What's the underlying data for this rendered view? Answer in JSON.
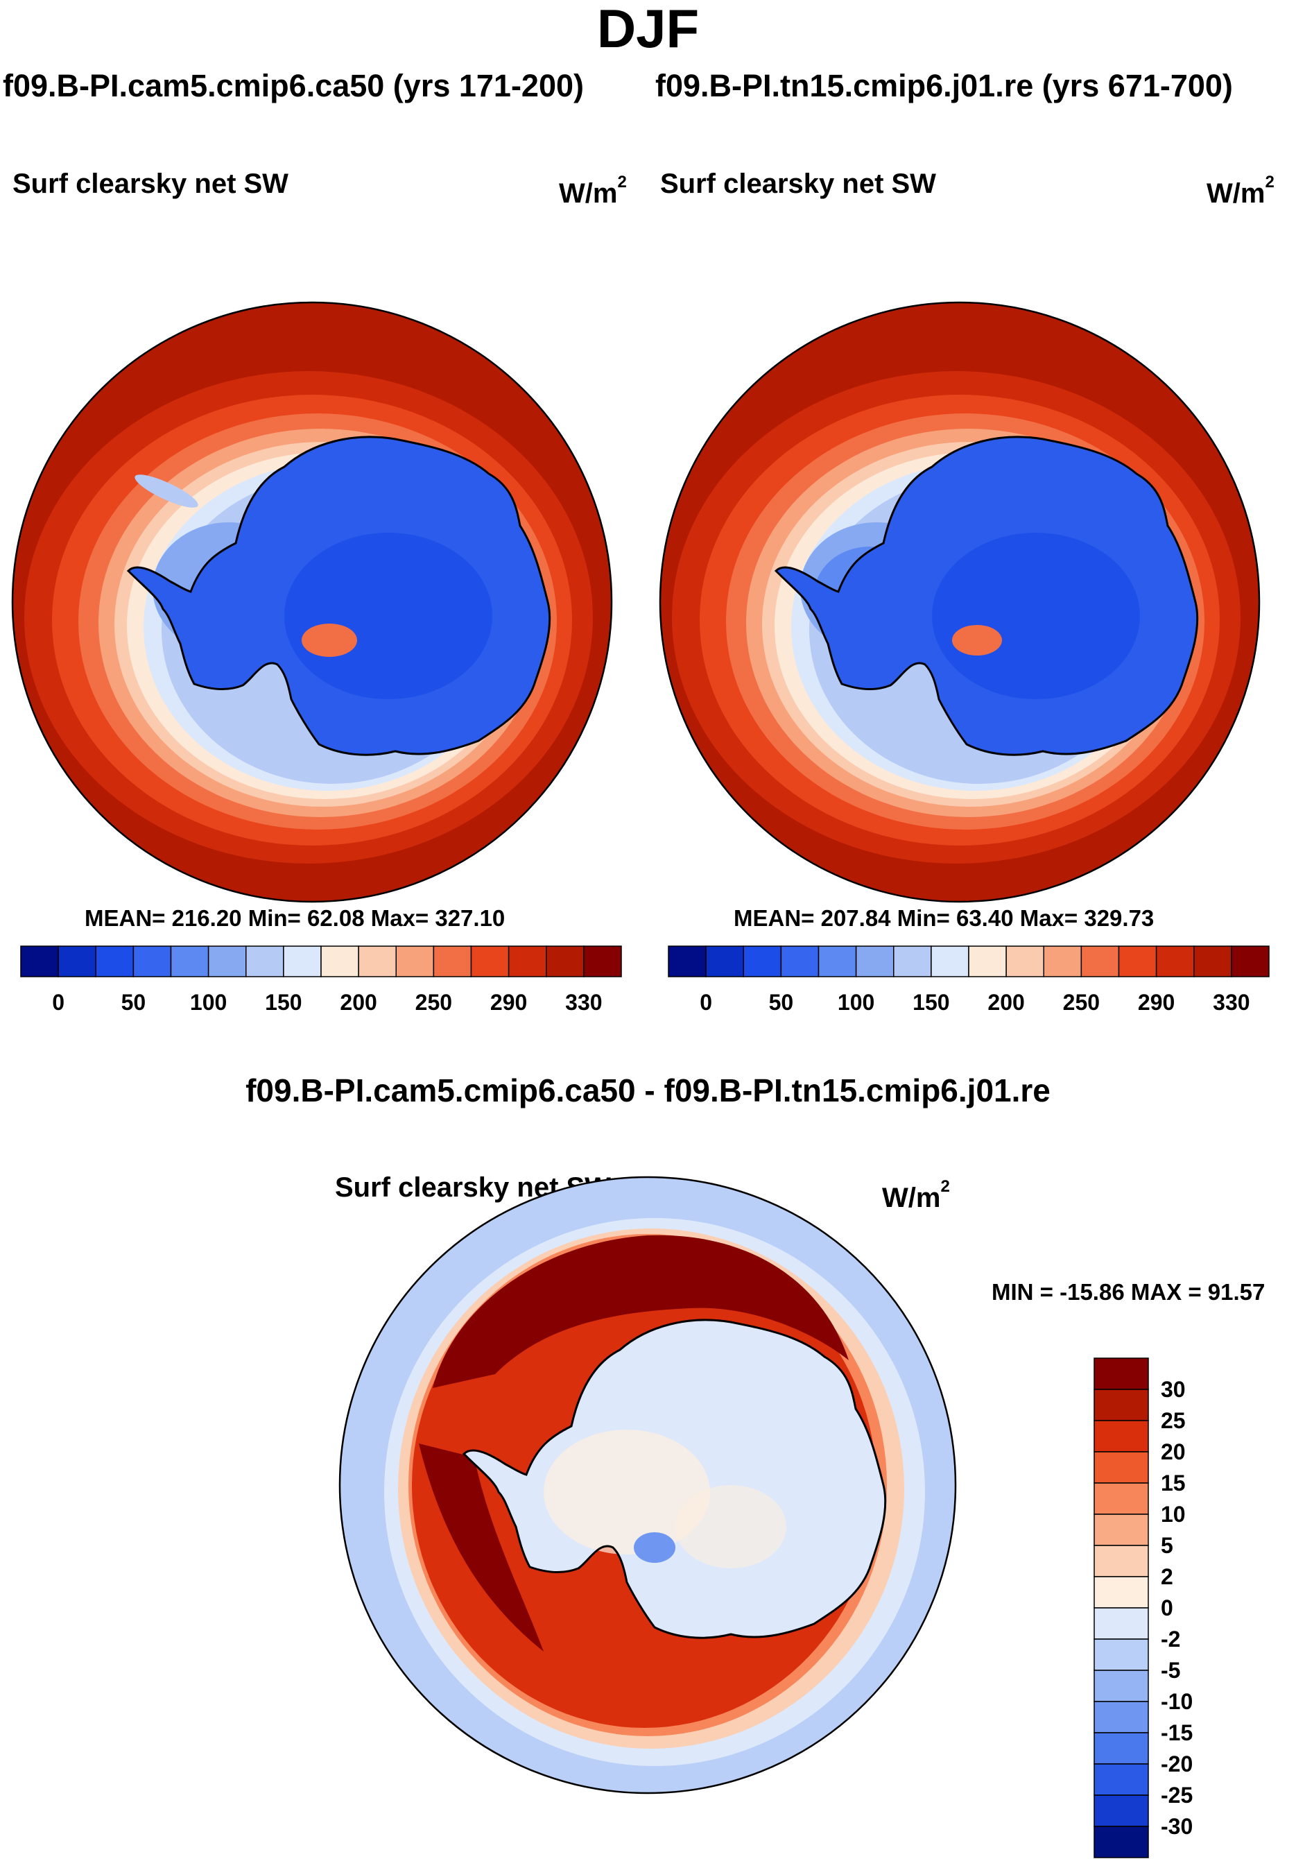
{
  "figure": {
    "title": "DJF",
    "case_a": "f09.B-PI.cam5.cmip6.ca50 (yrs 171-200)",
    "case_b": "f09.B-PI.tn15.cmip6.j01.re (yrs 671-700)",
    "difference_title": "f09.B-PI.cam5.cmip6.ca50 - f09.B-PI.tn15.cmip6.j01.re"
  },
  "panels": {
    "a": {
      "variable": "Surf clearsky net SW",
      "units": "W/m",
      "units_exp": "2",
      "stats": "MEAN= 216.20  Min=  62.08  Max= 327.10"
    },
    "b": {
      "variable": "Surf clearsky net SW",
      "units": "W/m",
      "units_exp": "2",
      "stats": "MEAN= 207.84  Min=  63.40  Max= 329.73"
    },
    "diff": {
      "variable": "Surf clearsky net SW",
      "units": "W/m",
      "units_exp": "2",
      "stats": "MIN = -15.86 MAX =  91.57"
    }
  },
  "chart_data": [
    {
      "type": "heatmap",
      "title": "Surf clearsky net SW (f09.B-PI.cam5.cmip6.ca50)",
      "projection": "south-polar-stereographic",
      "colorbar_labels": [
        "0",
        "50",
        "100",
        "150",
        "200",
        "250",
        "290",
        "330"
      ],
      "colorbar_colors": [
        "#000d86",
        "#0a2fc4",
        "#1c4de8",
        "#3666f0",
        "#5c8af2",
        "#87a9f2",
        "#b5caf5",
        "#dbe8fb",
        "#fde9d8",
        "#fbcbb0",
        "#f8a27c",
        "#f26f45",
        "#e9451c",
        "#cf2a0a",
        "#b31a02",
        "#850000"
      ],
      "mean": 216.2,
      "min": 62.08,
      "max": 327.1
    },
    {
      "type": "heatmap",
      "title": "Surf clearsky net SW (f09.B-PI.tn15.cmip6.j01.re)",
      "projection": "south-polar-stereographic",
      "colorbar_labels": [
        "0",
        "50",
        "100",
        "150",
        "200",
        "250",
        "290",
        "330"
      ],
      "colorbar_colors": [
        "#000d86",
        "#0a2fc4",
        "#1c4de8",
        "#3666f0",
        "#5c8af2",
        "#87a9f2",
        "#b5caf5",
        "#dbe8fb",
        "#fde9d8",
        "#fbcbb0",
        "#f8a27c",
        "#f26f45",
        "#e9451c",
        "#cf2a0a",
        "#b31a02",
        "#850000"
      ],
      "mean": 207.84,
      "min": 63.4,
      "max": 329.73
    },
    {
      "type": "heatmap",
      "title": "Surf clearsky net SW (difference)",
      "projection": "south-polar-stereographic",
      "colorbar_labels": [
        "30",
        "25",
        "20",
        "15",
        "10",
        "5",
        "2",
        "0",
        "-2",
        "-5",
        "-10",
        "-15",
        "-20",
        "-25",
        "-30"
      ],
      "colorbar_colors": [
        "#850000",
        "#b31a02",
        "#d92f0c",
        "#ef5a2c",
        "#f7865a",
        "#f9ab86",
        "#fbcfb4",
        "#fdeedf",
        "#dde9fb",
        "#b9cff7",
        "#94b4f4",
        "#6f97f1",
        "#4a78ed",
        "#2b5ae6",
        "#143dd0",
        "#00107f"
      ],
      "min": -15.86,
      "max": 91.57
    }
  ]
}
